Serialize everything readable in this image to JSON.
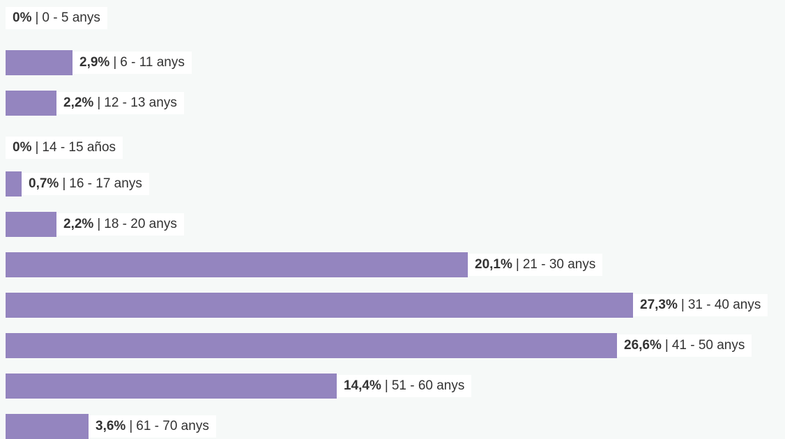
{
  "chart_data": {
    "type": "bar",
    "orientation": "horizontal",
    "separator": "|",
    "bar_color": "#9485bf",
    "label_background": "#ffffff",
    "page_background": "#f6f9f8",
    "xlim": [
      0,
      27.3
    ],
    "bars": [
      {
        "value": 0,
        "value_label": "0%",
        "category": "0 - 5 anys"
      },
      {
        "value": 2.9,
        "value_label": "2,9%",
        "category": "6 - 11 anys"
      },
      {
        "value": 2.2,
        "value_label": "2,2%",
        "category": "12 - 13 anys"
      },
      {
        "value": 0,
        "value_label": "0%",
        "category": "14 - 15 años"
      },
      {
        "value": 0.7,
        "value_label": "0,7%",
        "category": "16 - 17 anys"
      },
      {
        "value": 2.2,
        "value_label": "2,2%",
        "category": "18 - 20 anys"
      },
      {
        "value": 20.1,
        "value_label": "20,1%",
        "category": "21 - 30 anys"
      },
      {
        "value": 27.3,
        "value_label": "27,3%",
        "category": "31 - 40 anys"
      },
      {
        "value": 26.6,
        "value_label": "26,6%",
        "category": "41 - 50 anys"
      },
      {
        "value": 14.4,
        "value_label": "14,4%",
        "category": "51 - 60 anys"
      },
      {
        "value": 3.6,
        "value_label": "3,6%",
        "category": "61 - 70 anys"
      }
    ]
  }
}
